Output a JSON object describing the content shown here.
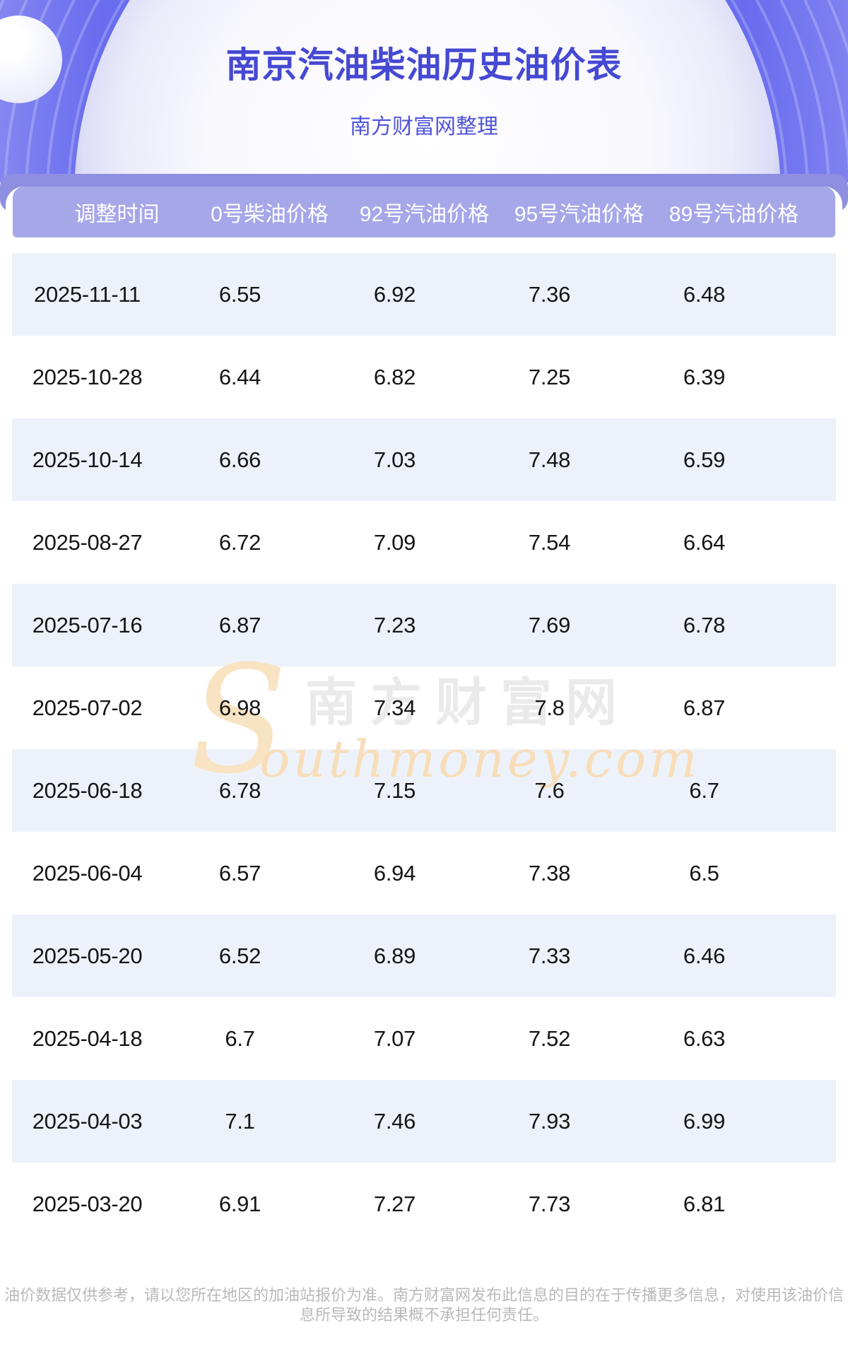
{
  "page": {
    "title": "南京汽油柴油历史油价表",
    "subtitle": "南方财富网整理"
  },
  "table": {
    "headers": [
      "调整时间",
      "0号柴油价格",
      "92号汽油价格",
      "95号汽油价格",
      "89号汽油价格"
    ],
    "rows": [
      [
        "2025-11-11",
        "6.55",
        "6.92",
        "7.36",
        "6.48"
      ],
      [
        "2025-10-28",
        "6.44",
        "6.82",
        "7.25",
        "6.39"
      ],
      [
        "2025-10-14",
        "6.66",
        "7.03",
        "7.48",
        "6.59"
      ],
      [
        "2025-08-27",
        "6.72",
        "7.09",
        "7.54",
        "6.64"
      ],
      [
        "2025-07-16",
        "6.87",
        "7.23",
        "7.69",
        "6.78"
      ],
      [
        "2025-07-02",
        "6.98",
        "7.34",
        "7.8",
        "6.87"
      ],
      [
        "2025-06-18",
        "6.78",
        "7.15",
        "7.6",
        "6.7"
      ],
      [
        "2025-06-04",
        "6.57",
        "6.94",
        "7.38",
        "6.5"
      ],
      [
        "2025-05-20",
        "6.52",
        "6.89",
        "7.33",
        "6.46"
      ],
      [
        "2025-04-18",
        "6.7",
        "7.07",
        "7.52",
        "6.63"
      ],
      [
        "2025-04-03",
        "7.1",
        "7.46",
        "7.93",
        "6.99"
      ],
      [
        "2025-03-20",
        "6.91",
        "7.27",
        "7.73",
        "6.81"
      ]
    ]
  },
  "watermark": {
    "swoosh": "S",
    "cn": "南方财富网",
    "en": "outhmoney.com"
  },
  "footer": {
    "disclaimer": "油价数据仅供参考，请以您所在地区的加油站报价为准。南方财富网发布此信息的目的在于传播更多信息，对使用该油价信息所导致的结果概不承担任何责任。"
  },
  "colors": {
    "hero_base": "#686cee",
    "band": "#8e8fe0",
    "table_header": "#a6a7e9",
    "row_alt": "#edf2fa",
    "title": "#4649d2",
    "subtitle": "#5054d8",
    "watermark_orange": "#f8e3c2",
    "watermark_peach": "#f8ddb9",
    "footer_text": "#b9b9b9"
  }
}
